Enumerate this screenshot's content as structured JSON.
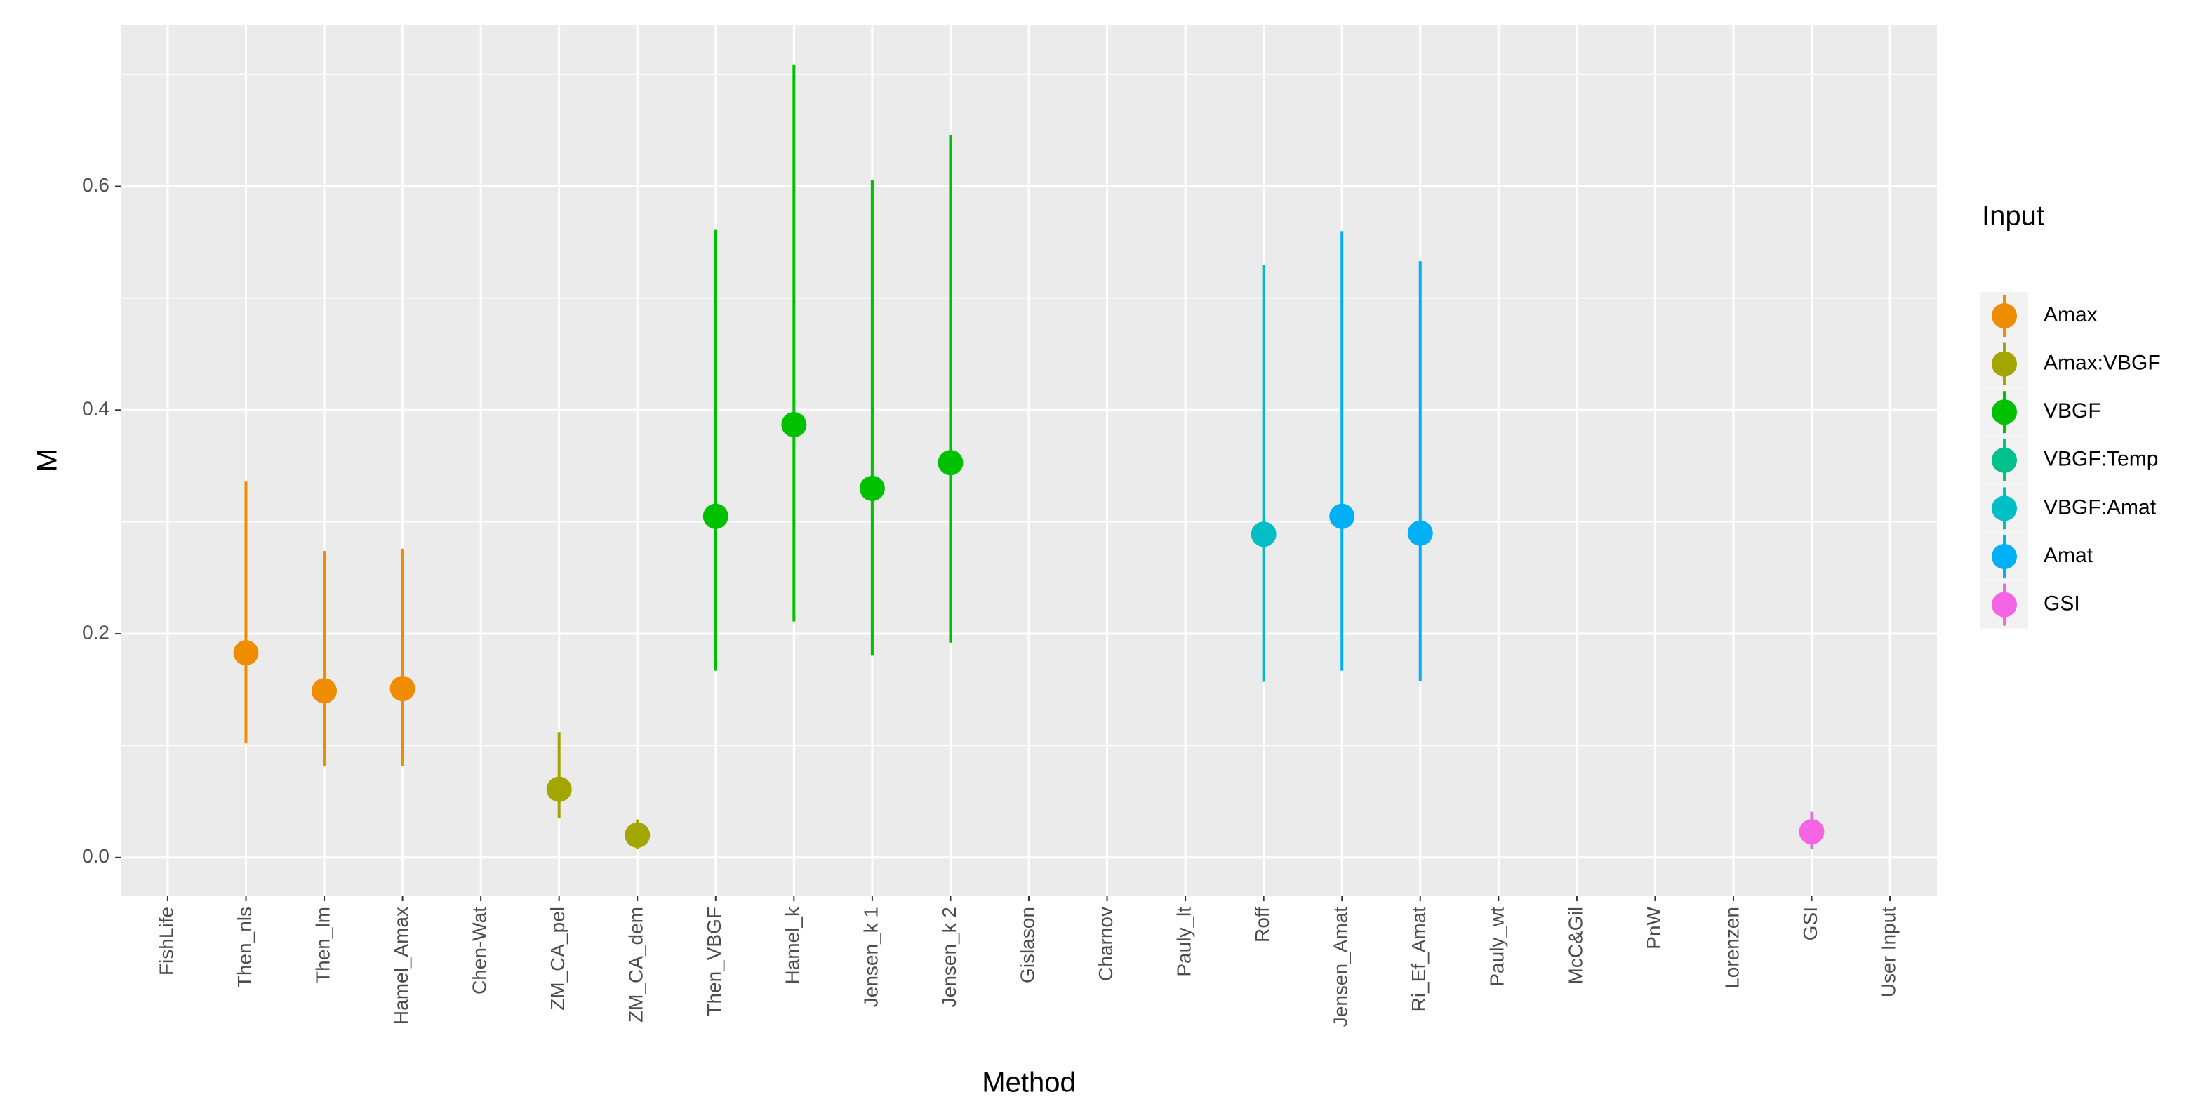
{
  "chart_data": {
    "type": "pointrange",
    "x_label": "Method",
    "y_label": "M",
    "legend_title": "Input",
    "categories": [
      "FishLife",
      "Then_nls",
      "Then_lm",
      "Hamel_Amax",
      "Chen-Wat",
      "ZM_CA_pel",
      "ZM_CA_dem",
      "Then_VBGF",
      "Hamel_k",
      "Jensen_k 1",
      "Jensen_k 2",
      "Gislason",
      "Charnov",
      "Pauly_lt",
      "Roff",
      "Jensen_Amat",
      "Ri_Ef_Amat",
      "Pauly_wt",
      "McC&Gil",
      "PnW",
      "Lorenzen",
      "GSI",
      "User Input"
    ],
    "series": [
      {
        "name": "Amax",
        "color": "#f08c00",
        "values": [
          null,
          0.183,
          0.149,
          0.151,
          null,
          null,
          null,
          null,
          null,
          null,
          null,
          null,
          null,
          null,
          null,
          null,
          null,
          null,
          null,
          null,
          null,
          null,
          null
        ],
        "lower": [
          null,
          0.102,
          0.082,
          0.082,
          null,
          null,
          null,
          null,
          null,
          null,
          null,
          null,
          null,
          null,
          null,
          null,
          null,
          null,
          null,
          null,
          null,
          null,
          null
        ],
        "upper": [
          null,
          0.336,
          0.274,
          0.276,
          null,
          null,
          null,
          null,
          null,
          null,
          null,
          null,
          null,
          null,
          null,
          null,
          null,
          null,
          null,
          null,
          null,
          null,
          null
        ]
      },
      {
        "name": "Amax:VBGF",
        "color": "#a3a500",
        "values": [
          null,
          null,
          null,
          null,
          null,
          0.061,
          0.02,
          null,
          null,
          null,
          null,
          null,
          null,
          null,
          null,
          null,
          null,
          null,
          null,
          null,
          null,
          null,
          null
        ],
        "lower": [
          null,
          null,
          null,
          null,
          null,
          0.035,
          0.008,
          null,
          null,
          null,
          null,
          null,
          null,
          null,
          null,
          null,
          null,
          null,
          null,
          null,
          null,
          null,
          null
        ],
        "upper": [
          null,
          null,
          null,
          null,
          null,
          0.112,
          0.034,
          null,
          null,
          null,
          null,
          null,
          null,
          null,
          null,
          null,
          null,
          null,
          null,
          null,
          null,
          null,
          null
        ]
      },
      {
        "name": "VBGF",
        "color": "#00c000",
        "values": [
          null,
          null,
          null,
          null,
          null,
          null,
          null,
          0.305,
          0.387,
          0.33,
          0.353,
          null,
          null,
          null,
          null,
          null,
          null,
          null,
          null,
          null,
          null,
          null,
          null
        ],
        "lower": [
          null,
          null,
          null,
          null,
          null,
          null,
          null,
          0.167,
          0.211,
          0.181,
          0.192,
          null,
          null,
          null,
          null,
          null,
          null,
          null,
          null,
          null,
          null,
          null,
          null
        ],
        "upper": [
          null,
          null,
          null,
          null,
          null,
          null,
          null,
          0.561,
          0.709,
          0.606,
          0.646,
          null,
          null,
          null,
          null,
          null,
          null,
          null,
          null,
          null,
          null,
          null,
          null
        ]
      },
      {
        "name": "VBGF:Temp",
        "color": "#00c08b",
        "values": [
          null,
          null,
          null,
          null,
          null,
          null,
          null,
          null,
          null,
          null,
          null,
          null,
          null,
          null,
          null,
          null,
          null,
          null,
          null,
          null,
          null,
          null,
          null
        ],
        "lower": [
          null,
          null,
          null,
          null,
          null,
          null,
          null,
          null,
          null,
          null,
          null,
          null,
          null,
          null,
          null,
          null,
          null,
          null,
          null,
          null,
          null,
          null,
          null
        ],
        "upper": [
          null,
          null,
          null,
          null,
          null,
          null,
          null,
          null,
          null,
          null,
          null,
          null,
          null,
          null,
          null,
          null,
          null,
          null,
          null,
          null,
          null,
          null,
          null
        ]
      },
      {
        "name": "VBGF:Amat",
        "color": "#00bfc4",
        "values": [
          null,
          null,
          null,
          null,
          null,
          null,
          null,
          null,
          null,
          null,
          null,
          null,
          null,
          null,
          0.289,
          null,
          null,
          null,
          null,
          null,
          null,
          null,
          null
        ],
        "lower": [
          null,
          null,
          null,
          null,
          null,
          null,
          null,
          null,
          null,
          null,
          null,
          null,
          null,
          null,
          0.157,
          null,
          null,
          null,
          null,
          null,
          null,
          null,
          null
        ],
        "upper": [
          null,
          null,
          null,
          null,
          null,
          null,
          null,
          null,
          null,
          null,
          null,
          null,
          null,
          null,
          0.53,
          null,
          null,
          null,
          null,
          null,
          null,
          null,
          null
        ]
      },
      {
        "name": "Amat",
        "color": "#00b0f6",
        "values": [
          null,
          null,
          null,
          null,
          null,
          null,
          null,
          null,
          null,
          null,
          null,
          null,
          null,
          null,
          null,
          0.305,
          0.29,
          null,
          null,
          null,
          null,
          null,
          null
        ],
        "lower": [
          null,
          null,
          null,
          null,
          null,
          null,
          null,
          null,
          null,
          null,
          null,
          null,
          null,
          null,
          null,
          0.167,
          0.158,
          null,
          null,
          null,
          null,
          null,
          null
        ],
        "upper": [
          null,
          null,
          null,
          null,
          null,
          null,
          null,
          null,
          null,
          null,
          null,
          null,
          null,
          null,
          null,
          0.56,
          0.533,
          null,
          null,
          null,
          null,
          null,
          null
        ]
      },
      {
        "name": "GSI",
        "color": "#f564e3",
        "values": [
          null,
          null,
          null,
          null,
          null,
          null,
          null,
          null,
          null,
          null,
          null,
          null,
          null,
          null,
          null,
          null,
          null,
          null,
          null,
          null,
          null,
          0.023,
          null
        ],
        "lower": [
          null,
          null,
          null,
          null,
          null,
          null,
          null,
          null,
          null,
          null,
          null,
          null,
          null,
          null,
          null,
          null,
          null,
          null,
          null,
          null,
          null,
          0.008,
          null
        ],
        "upper": [
          null,
          null,
          null,
          null,
          null,
          null,
          null,
          null,
          null,
          null,
          null,
          null,
          null,
          null,
          null,
          null,
          null,
          null,
          null,
          null,
          null,
          0.041,
          null
        ]
      }
    ],
    "ylim": [
      -0.034,
      0.744
    ],
    "yticks": [
      {
        "value": 0,
        "label": "0.0"
      },
      0.2,
      0.4,
      0.6
    ],
    "grid": true
  }
}
